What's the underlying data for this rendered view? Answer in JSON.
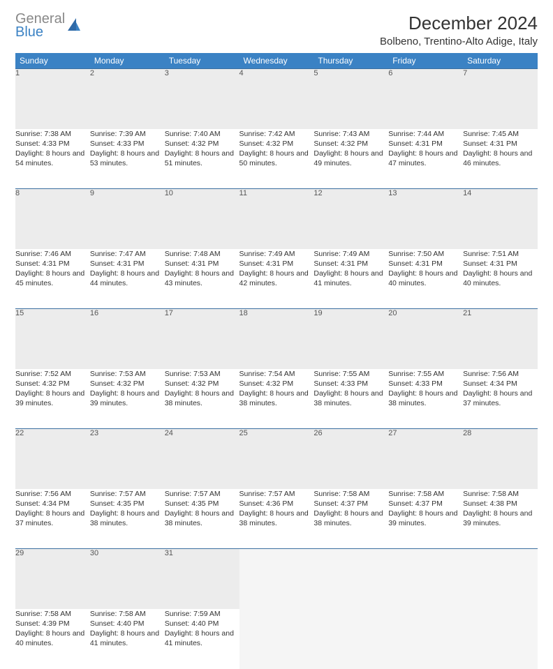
{
  "brand": {
    "line1": "General",
    "line2": "Blue"
  },
  "title": "December 2024",
  "location": "Bolbeno, Trentino-Alto Adige, Italy",
  "colors": {
    "header_bg": "#3b82c4",
    "header_fg": "#ffffff",
    "daynum_bg": "#ececec",
    "border": "#3b6fa0"
  },
  "weekdays": [
    "Sunday",
    "Monday",
    "Tuesday",
    "Wednesday",
    "Thursday",
    "Friday",
    "Saturday"
  ],
  "weeks": [
    [
      {
        "n": "1",
        "sr": "Sunrise: 7:38 AM",
        "ss": "Sunset: 4:33 PM",
        "dl": "Daylight: 8 hours and 54 minutes."
      },
      {
        "n": "2",
        "sr": "Sunrise: 7:39 AM",
        "ss": "Sunset: 4:33 PM",
        "dl": "Daylight: 8 hours and 53 minutes."
      },
      {
        "n": "3",
        "sr": "Sunrise: 7:40 AM",
        "ss": "Sunset: 4:32 PM",
        "dl": "Daylight: 8 hours and 51 minutes."
      },
      {
        "n": "4",
        "sr": "Sunrise: 7:42 AM",
        "ss": "Sunset: 4:32 PM",
        "dl": "Daylight: 8 hours and 50 minutes."
      },
      {
        "n": "5",
        "sr": "Sunrise: 7:43 AM",
        "ss": "Sunset: 4:32 PM",
        "dl": "Daylight: 8 hours and 49 minutes."
      },
      {
        "n": "6",
        "sr": "Sunrise: 7:44 AM",
        "ss": "Sunset: 4:31 PM",
        "dl": "Daylight: 8 hours and 47 minutes."
      },
      {
        "n": "7",
        "sr": "Sunrise: 7:45 AM",
        "ss": "Sunset: 4:31 PM",
        "dl": "Daylight: 8 hours and 46 minutes."
      }
    ],
    [
      {
        "n": "8",
        "sr": "Sunrise: 7:46 AM",
        "ss": "Sunset: 4:31 PM",
        "dl": "Daylight: 8 hours and 45 minutes."
      },
      {
        "n": "9",
        "sr": "Sunrise: 7:47 AM",
        "ss": "Sunset: 4:31 PM",
        "dl": "Daylight: 8 hours and 44 minutes."
      },
      {
        "n": "10",
        "sr": "Sunrise: 7:48 AM",
        "ss": "Sunset: 4:31 PM",
        "dl": "Daylight: 8 hours and 43 minutes."
      },
      {
        "n": "11",
        "sr": "Sunrise: 7:49 AM",
        "ss": "Sunset: 4:31 PM",
        "dl": "Daylight: 8 hours and 42 minutes."
      },
      {
        "n": "12",
        "sr": "Sunrise: 7:49 AM",
        "ss": "Sunset: 4:31 PM",
        "dl": "Daylight: 8 hours and 41 minutes."
      },
      {
        "n": "13",
        "sr": "Sunrise: 7:50 AM",
        "ss": "Sunset: 4:31 PM",
        "dl": "Daylight: 8 hours and 40 minutes."
      },
      {
        "n": "14",
        "sr": "Sunrise: 7:51 AM",
        "ss": "Sunset: 4:31 PM",
        "dl": "Daylight: 8 hours and 40 minutes."
      }
    ],
    [
      {
        "n": "15",
        "sr": "Sunrise: 7:52 AM",
        "ss": "Sunset: 4:32 PM",
        "dl": "Daylight: 8 hours and 39 minutes."
      },
      {
        "n": "16",
        "sr": "Sunrise: 7:53 AM",
        "ss": "Sunset: 4:32 PM",
        "dl": "Daylight: 8 hours and 39 minutes."
      },
      {
        "n": "17",
        "sr": "Sunrise: 7:53 AM",
        "ss": "Sunset: 4:32 PM",
        "dl": "Daylight: 8 hours and 38 minutes."
      },
      {
        "n": "18",
        "sr": "Sunrise: 7:54 AM",
        "ss": "Sunset: 4:32 PM",
        "dl": "Daylight: 8 hours and 38 minutes."
      },
      {
        "n": "19",
        "sr": "Sunrise: 7:55 AM",
        "ss": "Sunset: 4:33 PM",
        "dl": "Daylight: 8 hours and 38 minutes."
      },
      {
        "n": "20",
        "sr": "Sunrise: 7:55 AM",
        "ss": "Sunset: 4:33 PM",
        "dl": "Daylight: 8 hours and 38 minutes."
      },
      {
        "n": "21",
        "sr": "Sunrise: 7:56 AM",
        "ss": "Sunset: 4:34 PM",
        "dl": "Daylight: 8 hours and 37 minutes."
      }
    ],
    [
      {
        "n": "22",
        "sr": "Sunrise: 7:56 AM",
        "ss": "Sunset: 4:34 PM",
        "dl": "Daylight: 8 hours and 37 minutes."
      },
      {
        "n": "23",
        "sr": "Sunrise: 7:57 AM",
        "ss": "Sunset: 4:35 PM",
        "dl": "Daylight: 8 hours and 38 minutes."
      },
      {
        "n": "24",
        "sr": "Sunrise: 7:57 AM",
        "ss": "Sunset: 4:35 PM",
        "dl": "Daylight: 8 hours and 38 minutes."
      },
      {
        "n": "25",
        "sr": "Sunrise: 7:57 AM",
        "ss": "Sunset: 4:36 PM",
        "dl": "Daylight: 8 hours and 38 minutes."
      },
      {
        "n": "26",
        "sr": "Sunrise: 7:58 AM",
        "ss": "Sunset: 4:37 PM",
        "dl": "Daylight: 8 hours and 38 minutes."
      },
      {
        "n": "27",
        "sr": "Sunrise: 7:58 AM",
        "ss": "Sunset: 4:37 PM",
        "dl": "Daylight: 8 hours and 39 minutes."
      },
      {
        "n": "28",
        "sr": "Sunrise: 7:58 AM",
        "ss": "Sunset: 4:38 PM",
        "dl": "Daylight: 8 hours and 39 minutes."
      }
    ],
    [
      {
        "n": "29",
        "sr": "Sunrise: 7:58 AM",
        "ss": "Sunset: 4:39 PM",
        "dl": "Daylight: 8 hours and 40 minutes."
      },
      {
        "n": "30",
        "sr": "Sunrise: 7:58 AM",
        "ss": "Sunset: 4:40 PM",
        "dl": "Daylight: 8 hours and 41 minutes."
      },
      {
        "n": "31",
        "sr": "Sunrise: 7:59 AM",
        "ss": "Sunset: 4:40 PM",
        "dl": "Daylight: 8 hours and 41 minutes."
      },
      null,
      null,
      null,
      null
    ]
  ]
}
